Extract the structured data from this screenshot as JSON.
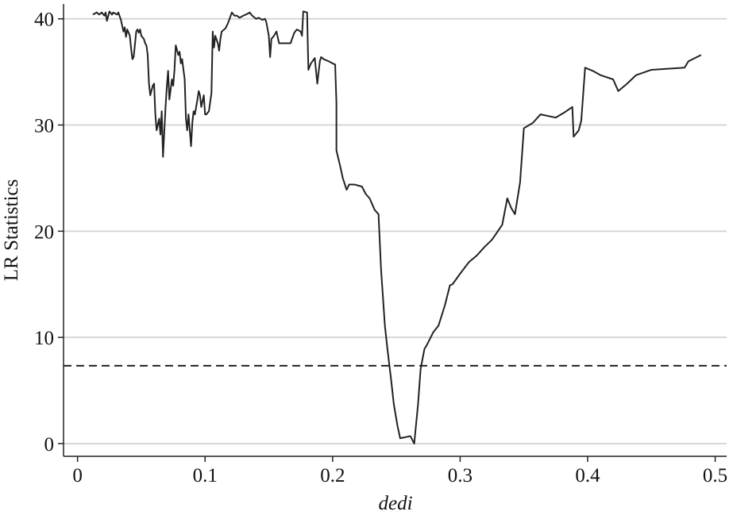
{
  "chart_data": {
    "type": "line",
    "xlabel": "dedi",
    "ylabel": "LR Statistics",
    "xlim": [
      -0.011,
      0.509
    ],
    "ylim": [
      -1.2,
      41.4
    ],
    "xticks": [
      0,
      0.1,
      0.2,
      0.3,
      0.4,
      0.5
    ],
    "yticks": [
      0,
      10,
      20,
      30,
      40
    ],
    "grid": true,
    "color": "#222222",
    "hline": 7.33,
    "hline_style": "dashed",
    "x": [
      0.012,
      0.015,
      0.017,
      0.019,
      0.021,
      0.022,
      0.023,
      0.025,
      0.027,
      0.028,
      0.031,
      0.032,
      0.034,
      0.036,
      0.037,
      0.038,
      0.039,
      0.041,
      0.042,
      0.043,
      0.044,
      0.046,
      0.047,
      0.048,
      0.049,
      0.05,
      0.052,
      0.053,
      0.054,
      0.055,
      0.056,
      0.057,
      0.059,
      0.06,
      0.061,
      0.062,
      0.064,
      0.065,
      0.066,
      0.067,
      0.069,
      0.07,
      0.071,
      0.072,
      0.074,
      0.075,
      0.076,
      0.077,
      0.079,
      0.08,
      0.081,
      0.082,
      0.084,
      0.085,
      0.086,
      0.087,
      0.089,
      0.09,
      0.091,
      0.092,
      0.094,
      0.095,
      0.096,
      0.097,
      0.099,
      0.1,
      0.101,
      0.103,
      0.105,
      0.106,
      0.107,
      0.108,
      0.11,
      0.111,
      0.112,
      0.113,
      0.116,
      0.118,
      0.121,
      0.123,
      0.125,
      0.127,
      0.13,
      0.132,
      0.135,
      0.137,
      0.14,
      0.142,
      0.145,
      0.147,
      0.148,
      0.15,
      0.151,
      0.152,
      0.154,
      0.156,
      0.158,
      0.16,
      0.167,
      0.17,
      0.172,
      0.175,
      0.176,
      0.177,
      0.18,
      0.181,
      0.183,
      0.186,
      0.188,
      0.19,
      0.191,
      0.193,
      0.197,
      0.2,
      0.202,
      0.203,
      0.203,
      0.206,
      0.208,
      0.211,
      0.213,
      0.217,
      0.223,
      0.226,
      0.229,
      0.233,
      0.236,
      0.238,
      0.241,
      0.243,
      0.246,
      0.248,
      0.251,
      0.253,
      0.261,
      0.264,
      0.267,
      0.269,
      0.272,
      0.274,
      0.279,
      0.283,
      0.288,
      0.292,
      0.294,
      0.3,
      0.307,
      0.313,
      0.319,
      0.325,
      0.333,
      0.337,
      0.34,
      0.343,
      0.347,
      0.35,
      0.357,
      0.363,
      0.375,
      0.382,
      0.388,
      0.389,
      0.393,
      0.395,
      0.398,
      0.404,
      0.41,
      0.42,
      0.424,
      0.431,
      0.438,
      0.45,
      0.476,
      0.479,
      0.489
    ],
    "values": [
      40.4,
      40.6,
      40.4,
      40.6,
      40.3,
      40.6,
      39.8,
      40.7,
      40.4,
      40.6,
      40.4,
      40.6,
      39.9,
      38.8,
      39.2,
      38.3,
      39.0,
      38.4,
      37.2,
      36.2,
      36.4,
      38.8,
      39.0,
      38.7,
      39.0,
      38.4,
      38.1,
      37.7,
      37.5,
      36.6,
      33.9,
      32.8,
      33.7,
      33.9,
      31.0,
      29.5,
      30.6,
      29.1,
      31.3,
      27.0,
      31.7,
      33.6,
      35.1,
      32.4,
      34.3,
      33.7,
      35.2,
      37.5,
      36.6,
      36.9,
      35.8,
      36.2,
      34.3,
      30.6,
      29.5,
      31.0,
      28.0,
      30.2,
      31.3,
      31.0,
      32.4,
      33.2,
      32.8,
      31.7,
      32.8,
      31.0,
      31.0,
      31.3,
      33.0,
      38.8,
      37.3,
      38.4,
      37.7,
      37.0,
      38.1,
      38.8,
      39.1,
      39.6,
      40.6,
      40.3,
      40.3,
      40.1,
      40.3,
      40.4,
      40.6,
      40.3,
      40.0,
      40.1,
      39.9,
      40.0,
      39.7,
      38.4,
      36.4,
      38.1,
      38.4,
      38.8,
      37.7,
      37.7,
      37.7,
      38.7,
      39.0,
      38.8,
      38.4,
      40.7,
      40.6,
      35.2,
      35.8,
      36.3,
      33.9,
      36.0,
      36.4,
      36.2,
      36.0,
      35.8,
      35.7,
      32.1,
      27.6,
      26.1,
      25.0,
      23.9,
      24.4,
      24.4,
      24.2,
      23.5,
      23.1,
      22.0,
      21.6,
      16.4,
      11.1,
      8.9,
      5.9,
      3.7,
      1.6,
      0.5,
      0.7,
      0,
      3.7,
      7.0,
      8.9,
      9.3,
      10.5,
      11.1,
      13.0,
      14.9,
      15.0,
      16.0,
      17.1,
      17.7,
      18.5,
      19.2,
      20.6,
      23.1,
      22.2,
      21.6,
      24.6,
      29.7,
      30.2,
      31.0,
      30.7,
      31.2,
      31.7,
      28.9,
      29.5,
      30.4,
      35.4,
      35.1,
      34.7,
      34.3,
      33.2,
      33.9,
      34.7,
      35.2,
      35.4,
      36.0,
      36.6
    ]
  }
}
